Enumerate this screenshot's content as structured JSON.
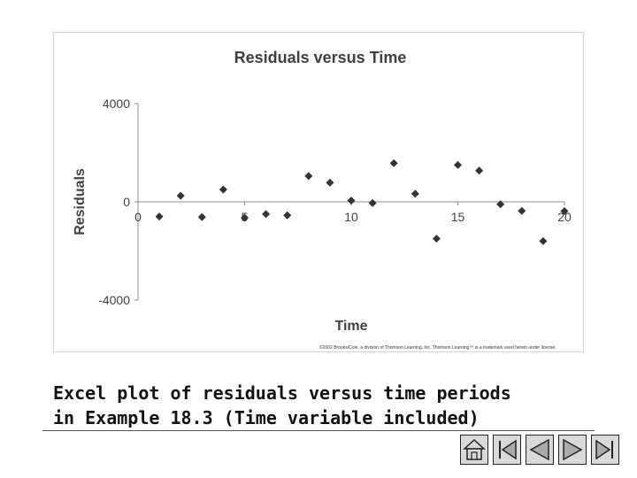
{
  "chart_data": {
    "type": "scatter",
    "title": "Residuals versus Time",
    "xlabel": "Time",
    "ylabel": "Residuals",
    "xlim": [
      0,
      20
    ],
    "ylim": [
      -4000,
      4000
    ],
    "x_ticks": [
      0,
      5,
      10,
      15,
      20
    ],
    "y_ticks": [
      4000,
      0,
      -4000
    ],
    "x_tick_labels": [
      "0",
      "5",
      "10",
      "15",
      "20"
    ],
    "y_tick_labels": [
      "4000",
      "0",
      "-4000"
    ],
    "grid": false,
    "legend": "none",
    "marker": "diamond",
    "marker_color": "#333333",
    "x": [
      1,
      2,
      3,
      4,
      5,
      6,
      7,
      8,
      9,
      10,
      11,
      12,
      13,
      14,
      15,
      16,
      17,
      18,
      19,
      20
    ],
    "y": [
      -600,
      250,
      -620,
      500,
      -650,
      -500,
      -550,
      1050,
      780,
      50,
      -50,
      1570,
      330,
      -1500,
      1500,
      1270,
      -100,
      -370,
      -1600,
      -380
    ]
  },
  "copyright": "©2002 Brooks/Cole, a division of Thomson Learning, Inc. Thomson Learning™ is a trademark used herein under license.",
  "caption": {
    "line1": "Excel plot of residuals versus time periods",
    "line2": "in Example 18.3 (Time variable included)"
  },
  "nav": {
    "home_icon": "home-icon",
    "first_icon": "first-slide-icon",
    "prev_icon": "previous-slide-icon",
    "next_icon": "next-slide-icon",
    "last_icon": "last-slide-icon"
  },
  "colors": {
    "axis": "#8c8c8c",
    "text": "#404040",
    "nav_fill": "#d9d9d9"
  }
}
